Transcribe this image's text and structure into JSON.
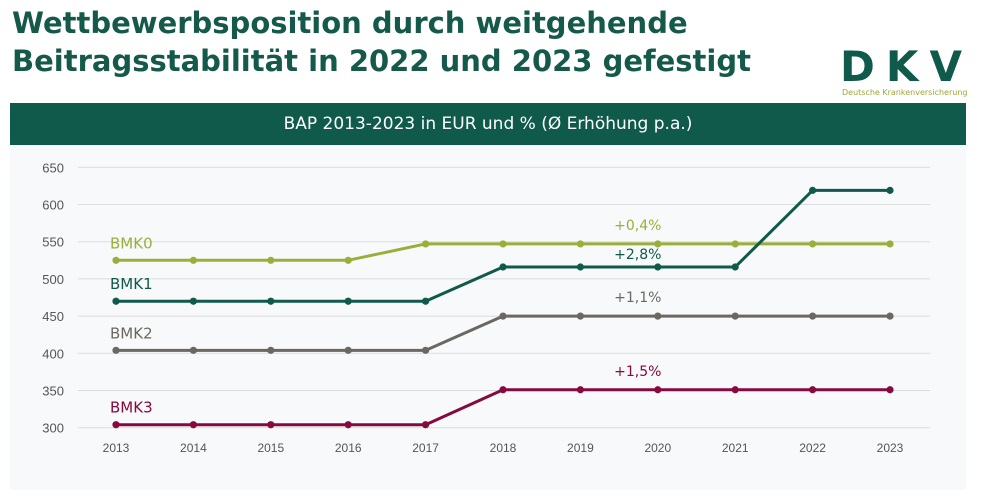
{
  "header": {
    "title": "Wettbewerbsposition durch weitgehende Beitragsstabilität in 2022 und 2023 gefestigt"
  },
  "logo": {
    "text": "DKV",
    "subtitle": "Deutsche Krankenversicherung",
    "colors": [
      "#0f5a4b",
      "#9aa83a"
    ]
  },
  "chart_data": {
    "type": "line",
    "title": "BAP 2013-2023 in EUR und % (Ø Erhöhung p.a.)",
    "x": [
      "2013",
      "2014",
      "2015",
      "2016",
      "2017",
      "2018",
      "2019",
      "2020",
      "2021",
      "2022",
      "2023"
    ],
    "ylim": [
      300,
      650
    ],
    "yticks": [
      300,
      350,
      400,
      450,
      500,
      550,
      600,
      650
    ],
    "grid": true,
    "series": [
      {
        "name": "BMK0",
        "color": "#9aaf3a",
        "values": [
          525,
          525,
          525,
          525,
          547,
          547,
          547,
          547,
          547,
          547,
          547
        ],
        "annotation": "+0,4%"
      },
      {
        "name": "BMK1",
        "color": "#0f5a4b",
        "values": [
          470,
          470,
          470,
          470,
          470,
          516,
          516,
          516,
          516,
          619,
          619
        ],
        "annotation": "+2,8%"
      },
      {
        "name": "BMK2",
        "color": "#6b6862",
        "values": [
          404,
          404,
          404,
          404,
          404,
          450,
          450,
          450,
          450,
          450,
          450
        ],
        "annotation": "+1,1%"
      },
      {
        "name": "BMK3",
        "color": "#850a3f",
        "values": [
          304,
          304,
          304,
          304,
          304,
          351,
          351,
          351,
          351,
          351,
          351
        ],
        "annotation": "+1,5%"
      }
    ]
  }
}
